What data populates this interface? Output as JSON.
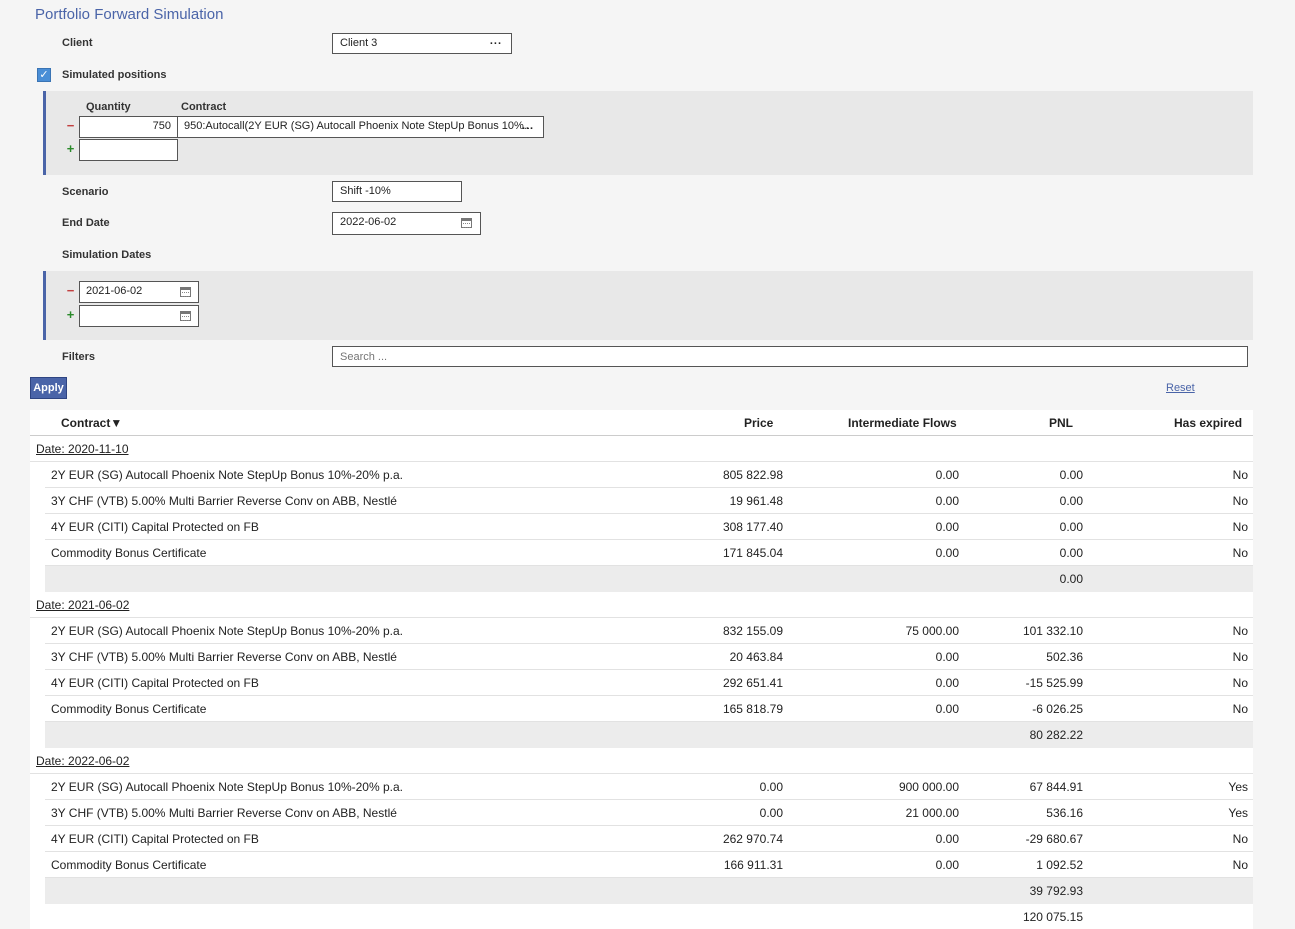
{
  "page": {
    "title": "Portfolio Forward Simulation"
  },
  "client": {
    "label": "Client",
    "value": "Client 3",
    "picker": "..."
  },
  "simulated_positions": {
    "label": "Simulated positions",
    "checked": true,
    "headers": {
      "quantity": "Quantity",
      "contract": "Contract"
    },
    "rows": [
      {
        "quantity": "750",
        "contract": "950:Autocall(2Y EUR (SG) Autocall Phoenix Note StepUp Bonus 10%...",
        "picker": "..."
      }
    ],
    "remove_label": "−",
    "add_label": "+"
  },
  "scenario": {
    "label": "Scenario",
    "value": "Shift -10%"
  },
  "end_date": {
    "label": "End Date",
    "value": "2022-06-02"
  },
  "simulation_dates": {
    "label": "Simulation Dates",
    "dates": [
      "2021-06-02"
    ],
    "remove_label": "−",
    "add_label": "+"
  },
  "filters": {
    "label": "Filters",
    "placeholder": "Search ..."
  },
  "actions": {
    "apply": "Apply",
    "reset": "Reset"
  },
  "table": {
    "columns": {
      "contract": "Contract▼",
      "price": "Price",
      "flows": "Intermediate Flows",
      "pnl": "PNL",
      "expired": "Has expired"
    },
    "groups": [
      {
        "header": "Date: 2020-11-10",
        "rows": [
          {
            "contract": "2Y EUR (SG) Autocall Phoenix Note StepUp Bonus 10%-20% p.a.",
            "price": "805 822.98",
            "flows": "0.00",
            "pnl": "0.00",
            "expired": "No"
          },
          {
            "contract": "3Y CHF (VTB) 5.00% Multi Barrier Reverse Conv on ABB, Nestlé",
            "price": "19 961.48",
            "flows": "0.00",
            "pnl": "0.00",
            "expired": "No"
          },
          {
            "contract": "4Y EUR (CITI) Capital Protected on FB",
            "price": "308 177.40",
            "flows": "0.00",
            "pnl": "0.00",
            "expired": "No"
          },
          {
            "contract": "Commodity Bonus Certificate",
            "price": "171 845.04",
            "flows": "0.00",
            "pnl": "0.00",
            "expired": "No"
          }
        ],
        "subtotal": "0.00"
      },
      {
        "header": "Date: 2021-06-02",
        "rows": [
          {
            "contract": "2Y EUR (SG) Autocall Phoenix Note StepUp Bonus 10%-20% p.a.",
            "price": "832 155.09",
            "flows": "75 000.00",
            "pnl": "101 332.10",
            "expired": "No"
          },
          {
            "contract": "3Y CHF (VTB) 5.00% Multi Barrier Reverse Conv on ABB, Nestlé",
            "price": "20 463.84",
            "flows": "0.00",
            "pnl": "502.36",
            "expired": "No"
          },
          {
            "contract": "4Y EUR (CITI) Capital Protected on FB",
            "price": "292 651.41",
            "flows": "0.00",
            "pnl": "-15 525.99",
            "expired": "No"
          },
          {
            "contract": "Commodity Bonus Certificate",
            "price": "165 818.79",
            "flows": "0.00",
            "pnl": "-6 026.25",
            "expired": "No"
          }
        ],
        "subtotal": "80 282.22"
      },
      {
        "header": "Date: 2022-06-02",
        "rows": [
          {
            "contract": "2Y EUR (SG) Autocall Phoenix Note StepUp Bonus 10%-20% p.a.",
            "price": "0.00",
            "flows": "900 000.00",
            "pnl": "67 844.91",
            "expired": "Yes"
          },
          {
            "contract": "3Y CHF (VTB) 5.00% Multi Barrier Reverse Conv on ABB, Nestlé",
            "price": "0.00",
            "flows": "21 000.00",
            "pnl": "536.16",
            "expired": "Yes"
          },
          {
            "contract": "4Y EUR (CITI) Capital Protected on FB",
            "price": "262 970.74",
            "flows": "0.00",
            "pnl": "-29 680.67",
            "expired": "No"
          },
          {
            "contract": "Commodity Bonus Certificate",
            "price": "166 911.31",
            "flows": "0.00",
            "pnl": "1 092.52",
            "expired": "No"
          }
        ],
        "subtotal": "39 792.93"
      }
    ],
    "grand_total": "120 075.15"
  },
  "colors": {
    "accent": "#4a64a8",
    "panel": "#e8e8e8",
    "subtotal_bg": "#ececec"
  }
}
